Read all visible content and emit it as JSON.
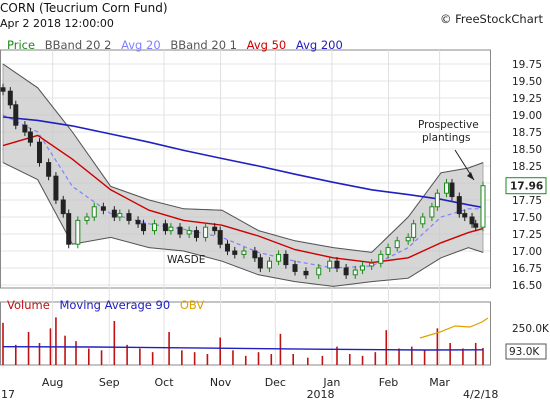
{
  "header": {
    "title": "CORN (Teucrium Corn Fund)",
    "datetime": "Apr 2 2018 12:00:00",
    "brand": "© FreeStockChart"
  },
  "legend": {
    "price": "Price",
    "bband_upper": "BBand 20 2",
    "avg20": "Avg 20",
    "bband_lower": "BBand 20 1",
    "avg50": "Avg 50",
    "avg200": "Avg 200"
  },
  "volume_legend": {
    "volume": "Volume",
    "ma90": "Moving Average 90",
    "obv": "OBV"
  },
  "colors": {
    "price": "#1a8a1a",
    "candle_down": "#c01010",
    "avg20": "#8080ff",
    "avg50": "#cc0000",
    "avg200": "#2020c0",
    "band_fill": "#c8c8c8",
    "obv": "#e0a000",
    "last_price_box": "#1a8a1a"
  },
  "annotations": {
    "prospective": "Prospective",
    "plantings": "plantings",
    "wasde": "WASDE",
    "last_price": "17.96",
    "vol_max": "250.0K",
    "vol_current": "93.0K",
    "year_2017": "17",
    "year_2018": "2018",
    "date_end": "4/2/18"
  },
  "chart_data": {
    "type": "candlestick",
    "title": "CORN (Teucrium Corn Fund)",
    "yticks": [
      "19.75",
      "19.50",
      "19.25",
      "19.00",
      "18.75",
      "18.50",
      "18.25",
      "18.00",
      "17.75",
      "17.50",
      "17.25",
      "17.00",
      "16.75",
      "16.50"
    ],
    "ylim": [
      16.5,
      19.75
    ],
    "x_months": [
      "Aug",
      "Sep",
      "Oct",
      "Nov",
      "Dec",
      "Jan",
      "Feb",
      "Mar"
    ],
    "x_range": [
      "2017-07-13",
      "2018-04-02"
    ],
    "close_series": [
      {
        "date": "2017-07-13",
        "close": 19.35
      },
      {
        "date": "2017-07-17",
        "close": 19.15
      },
      {
        "date": "2017-07-20",
        "close": 18.85
      },
      {
        "date": "2017-07-25",
        "close": 18.75
      },
      {
        "date": "2017-07-28",
        "close": 18.6
      },
      {
        "date": "2017-08-02",
        "close": 18.3
      },
      {
        "date": "2017-08-07",
        "close": 18.1
      },
      {
        "date": "2017-08-11",
        "close": 17.75
      },
      {
        "date": "2017-08-15",
        "close": 17.55
      },
      {
        "date": "2017-08-18",
        "close": 17.1
      },
      {
        "date": "2017-08-23",
        "close": 17.45
      },
      {
        "date": "2017-08-28",
        "close": 17.5
      },
      {
        "date": "2017-09-01",
        "close": 17.65
      },
      {
        "date": "2017-09-06",
        "close": 17.6
      },
      {
        "date": "2017-09-12",
        "close": 17.5
      },
      {
        "date": "2017-09-15",
        "close": 17.55
      },
      {
        "date": "2017-09-20",
        "close": 17.45
      },
      {
        "date": "2017-09-25",
        "close": 17.4
      },
      {
        "date": "2017-09-28",
        "close": 17.3
      },
      {
        "date": "2017-10-04",
        "close": 17.4
      },
      {
        "date": "2017-10-10",
        "close": 17.3
      },
      {
        "date": "2017-10-13",
        "close": 17.35
      },
      {
        "date": "2017-10-18",
        "close": 17.25
      },
      {
        "date": "2017-10-23",
        "close": 17.3
      },
      {
        "date": "2017-10-27",
        "close": 17.2
      },
      {
        "date": "2017-11-01",
        "close": 17.35
      },
      {
        "date": "2017-11-06",
        "close": 17.3
      },
      {
        "date": "2017-11-09",
        "close": 17.1
      },
      {
        "date": "2017-11-13",
        "close": 17.0
      },
      {
        "date": "2017-11-17",
        "close": 16.95
      },
      {
        "date": "2017-11-22",
        "close": 17.0
      },
      {
        "date": "2017-11-28",
        "close": 16.9
      },
      {
        "date": "2017-12-01",
        "close": 16.75
      },
      {
        "date": "2017-12-06",
        "close": 16.85
      },
      {
        "date": "2017-12-11",
        "close": 16.95
      },
      {
        "date": "2017-12-15",
        "close": 16.8
      },
      {
        "date": "2017-12-20",
        "close": 16.7
      },
      {
        "date": "2017-12-26",
        "close": 16.65
      },
      {
        "date": "2018-01-02",
        "close": 16.75
      },
      {
        "date": "2018-01-08",
        "close": 16.85
      },
      {
        "date": "2018-01-12",
        "close": 16.75
      },
      {
        "date": "2018-01-17",
        "close": 16.65
      },
      {
        "date": "2018-01-22",
        "close": 16.72
      },
      {
        "date": "2018-01-26",
        "close": 16.78
      },
      {
        "date": "2018-01-31",
        "close": 16.82
      },
      {
        "date": "2018-02-05",
        "close": 16.95
      },
      {
        "date": "2018-02-09",
        "close": 17.05
      },
      {
        "date": "2018-02-14",
        "close": 17.15
      },
      {
        "date": "2018-02-20",
        "close": 17.2
      },
      {
        "date": "2018-02-23",
        "close": 17.4
      },
      {
        "date": "2018-02-28",
        "close": 17.5
      },
      {
        "date": "2018-03-05",
        "close": 17.65
      },
      {
        "date": "2018-03-08",
        "close": 17.85
      },
      {
        "date": "2018-03-13",
        "close": 18.0
      },
      {
        "date": "2018-03-16",
        "close": 17.8
      },
      {
        "date": "2018-03-20",
        "close": 17.55
      },
      {
        "date": "2018-03-23",
        "close": 17.5
      },
      {
        "date": "2018-03-27",
        "close": 17.4
      },
      {
        "date": "2018-03-29",
        "close": 17.35
      },
      {
        "date": "2018-04-02",
        "close": 17.96
      }
    ],
    "avg20": [
      {
        "date": "2017-07-13",
        "value": 19.0
      },
      {
        "date": "2017-08-01",
        "value": 18.75
      },
      {
        "date": "2017-08-20",
        "value": 17.95
      },
      {
        "date": "2017-09-10",
        "value": 17.55
      },
      {
        "date": "2017-10-01",
        "value": 17.4
      },
      {
        "date": "2017-10-20",
        "value": 17.32
      },
      {
        "date": "2017-11-10",
        "value": 17.2
      },
      {
        "date": "2017-11-30",
        "value": 16.98
      },
      {
        "date": "2017-12-20",
        "value": 16.85
      },
      {
        "date": "2018-01-10",
        "value": 16.75
      },
      {
        "date": "2018-01-31",
        "value": 16.78
      },
      {
        "date": "2018-02-20",
        "value": 17.05
      },
      {
        "date": "2018-03-10",
        "value": 17.5
      },
      {
        "date": "2018-03-25",
        "value": 17.62
      },
      {
        "date": "2018-04-02",
        "value": 17.62
      }
    ],
    "avg50": [
      {
        "date": "2017-07-13",
        "value": 18.55
      },
      {
        "date": "2017-08-01",
        "value": 18.7
      },
      {
        "date": "2017-08-20",
        "value": 18.35
      },
      {
        "date": "2017-09-10",
        "value": 17.9
      },
      {
        "date": "2017-10-01",
        "value": 17.6
      },
      {
        "date": "2017-10-20",
        "value": 17.45
      },
      {
        "date": "2017-11-10",
        "value": 17.38
      },
      {
        "date": "2017-11-30",
        "value": 17.22
      },
      {
        "date": "2017-12-20",
        "value": 17.02
      },
      {
        "date": "2018-01-10",
        "value": 16.9
      },
      {
        "date": "2018-01-31",
        "value": 16.83
      },
      {
        "date": "2018-02-20",
        "value": 16.9
      },
      {
        "date": "2018-03-10",
        "value": 17.12
      },
      {
        "date": "2018-03-25",
        "value": 17.27
      },
      {
        "date": "2018-04-02",
        "value": 17.33
      }
    ],
    "avg200": [
      {
        "date": "2017-07-13",
        "value": 18.97
      },
      {
        "date": "2017-08-01",
        "value": 18.92
      },
      {
        "date": "2017-08-20",
        "value": 18.84
      },
      {
        "date": "2017-09-10",
        "value": 18.72
      },
      {
        "date": "2017-10-01",
        "value": 18.6
      },
      {
        "date": "2017-10-20",
        "value": 18.48
      },
      {
        "date": "2017-11-10",
        "value": 18.36
      },
      {
        "date": "2017-11-30",
        "value": 18.25
      },
      {
        "date": "2017-12-20",
        "value": 18.13
      },
      {
        "date": "2018-01-10",
        "value": 18.01
      },
      {
        "date": "2018-01-31",
        "value": 17.9
      },
      {
        "date": "2018-02-20",
        "value": 17.83
      },
      {
        "date": "2018-03-10",
        "value": 17.76
      },
      {
        "date": "2018-03-25",
        "value": 17.68
      },
      {
        "date": "2018-04-02",
        "value": 17.64
      }
    ],
    "band_upper": [
      {
        "date": "2017-07-13",
        "value": 19.75
      },
      {
        "date": "2017-08-01",
        "value": 19.4
      },
      {
        "date": "2017-08-20",
        "value": 18.75
      },
      {
        "date": "2017-09-10",
        "value": 17.95
      },
      {
        "date": "2017-10-01",
        "value": 17.75
      },
      {
        "date": "2017-10-20",
        "value": 17.62
      },
      {
        "date": "2017-11-10",
        "value": 17.6
      },
      {
        "date": "2017-11-30",
        "value": 17.3
      },
      {
        "date": "2017-12-20",
        "value": 17.15
      },
      {
        "date": "2018-01-10",
        "value": 17.05
      },
      {
        "date": "2018-01-31",
        "value": 16.98
      },
      {
        "date": "2018-02-20",
        "value": 17.5
      },
      {
        "date": "2018-03-10",
        "value": 18.15
      },
      {
        "date": "2018-03-25",
        "value": 18.22
      },
      {
        "date": "2018-04-02",
        "value": 18.3
      }
    ],
    "band_lower": [
      {
        "date": "2017-07-13",
        "value": 18.3
      },
      {
        "date": "2017-08-01",
        "value": 18.05
      },
      {
        "date": "2017-08-20",
        "value": 17.1
      },
      {
        "date": "2017-09-10",
        "value": 17.2
      },
      {
        "date": "2017-10-01",
        "value": 17.05
      },
      {
        "date": "2017-10-20",
        "value": 17.0
      },
      {
        "date": "2017-11-10",
        "value": 16.85
      },
      {
        "date": "2017-11-30",
        "value": 16.65
      },
      {
        "date": "2017-12-20",
        "value": 16.55
      },
      {
        "date": "2018-01-10",
        "value": 16.48
      },
      {
        "date": "2018-01-31",
        "value": 16.55
      },
      {
        "date": "2018-02-20",
        "value": 16.6
      },
      {
        "date": "2018-03-10",
        "value": 16.9
      },
      {
        "date": "2018-03-25",
        "value": 17.05
      },
      {
        "date": "2018-04-02",
        "value": 16.98
      }
    ],
    "volume": [
      {
        "date": "2017-07-13",
        "value": 230000
      },
      {
        "date": "2017-07-20",
        "value": 110000
      },
      {
        "date": "2017-07-27",
        "value": 180000
      },
      {
        "date": "2017-08-02",
        "value": 120000
      },
      {
        "date": "2017-08-08",
        "value": 200000
      },
      {
        "date": "2017-08-11",
        "value": 260000
      },
      {
        "date": "2017-08-16",
        "value": 160000
      },
      {
        "date": "2017-08-22",
        "value": 130000
      },
      {
        "date": "2017-08-29",
        "value": 90000
      },
      {
        "date": "2017-09-05",
        "value": 80000
      },
      {
        "date": "2017-09-12",
        "value": 240000
      },
      {
        "date": "2017-09-19",
        "value": 110000
      },
      {
        "date": "2017-09-26",
        "value": 90000
      },
      {
        "date": "2017-10-03",
        "value": 70000
      },
      {
        "date": "2017-10-12",
        "value": 180000
      },
      {
        "date": "2017-10-19",
        "value": 80000
      },
      {
        "date": "2017-10-26",
        "value": 70000
      },
      {
        "date": "2017-11-02",
        "value": 60000
      },
      {
        "date": "2017-11-09",
        "value": 150000
      },
      {
        "date": "2017-11-16",
        "value": 80000
      },
      {
        "date": "2017-11-23",
        "value": 50000
      },
      {
        "date": "2017-11-30",
        "value": 70000
      },
      {
        "date": "2017-12-07",
        "value": 60000
      },
      {
        "date": "2017-12-12",
        "value": 170000
      },
      {
        "date": "2017-12-19",
        "value": 60000
      },
      {
        "date": "2017-12-27",
        "value": 40000
      },
      {
        "date": "2018-01-04",
        "value": 50000
      },
      {
        "date": "2018-01-12",
        "value": 100000
      },
      {
        "date": "2018-01-19",
        "value": 60000
      },
      {
        "date": "2018-01-26",
        "value": 50000
      },
      {
        "date": "2018-02-02",
        "value": 70000
      },
      {
        "date": "2018-02-08",
        "value": 190000
      },
      {
        "date": "2018-02-15",
        "value": 90000
      },
      {
        "date": "2018-02-22",
        "value": 100000
      },
      {
        "date": "2018-03-01",
        "value": 80000
      },
      {
        "date": "2018-03-08",
        "value": 200000
      },
      {
        "date": "2018-03-15",
        "value": 120000
      },
      {
        "date": "2018-03-22",
        "value": 90000
      },
      {
        "date": "2018-03-29",
        "value": 120000
      },
      {
        "date": "2018-04-02",
        "value": 93000
      }
    ],
    "volume_ma90": [
      {
        "date": "2017-07-13",
        "value": 100000
      },
      {
        "date": "2017-09-01",
        "value": 98000
      },
      {
        "date": "2017-11-01",
        "value": 92000
      },
      {
        "date": "2018-01-01",
        "value": 86000
      },
      {
        "date": "2018-03-01",
        "value": 82000
      },
      {
        "date": "2018-04-02",
        "value": 83000
      }
    ],
    "volume_ylim": [
      0,
      300000
    ],
    "volume_ticks": [
      "250.0K",
      "93.0K"
    ],
    "last_price": 17.96
  }
}
